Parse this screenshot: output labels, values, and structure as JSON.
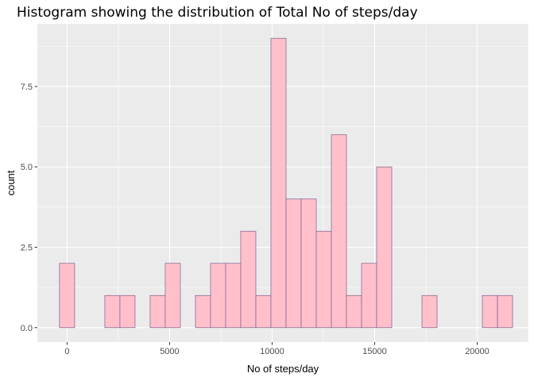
{
  "chart_data": {
    "type": "bar",
    "title": "Histogram showing the distribution of Total No of steps/day",
    "xlabel": "No of steps/day",
    "ylabel": "count",
    "bin_width": 736.5,
    "bin_start": -368.25,
    "values": [
      2,
      0,
      0,
      1,
      1,
      0,
      1,
      2,
      0,
      1,
      2,
      2,
      3,
      1,
      9,
      4,
      4,
      3,
      6,
      1,
      2,
      5,
      0,
      0,
      1,
      0,
      0,
      0,
      1,
      1
    ],
    "xlim": [
      -1450,
      22500
    ],
    "ylim": [
      -0.45,
      9.45
    ],
    "x_ticks": [
      0,
      5000,
      10000,
      15000,
      20000
    ],
    "x_tick_labels": [
      "0",
      "5000",
      "10000",
      "15000",
      "20000"
    ],
    "y_ticks": [
      0,
      2.5,
      5,
      7.5
    ],
    "y_tick_labels": [
      "0.0",
      "2.5",
      "5.0",
      "7.5"
    ],
    "grid": true,
    "colors": {
      "fill": "#ffc0cb",
      "outline": "#7d5f8e",
      "panel": "#ebebeb",
      "grid": "#ffffff"
    }
  }
}
